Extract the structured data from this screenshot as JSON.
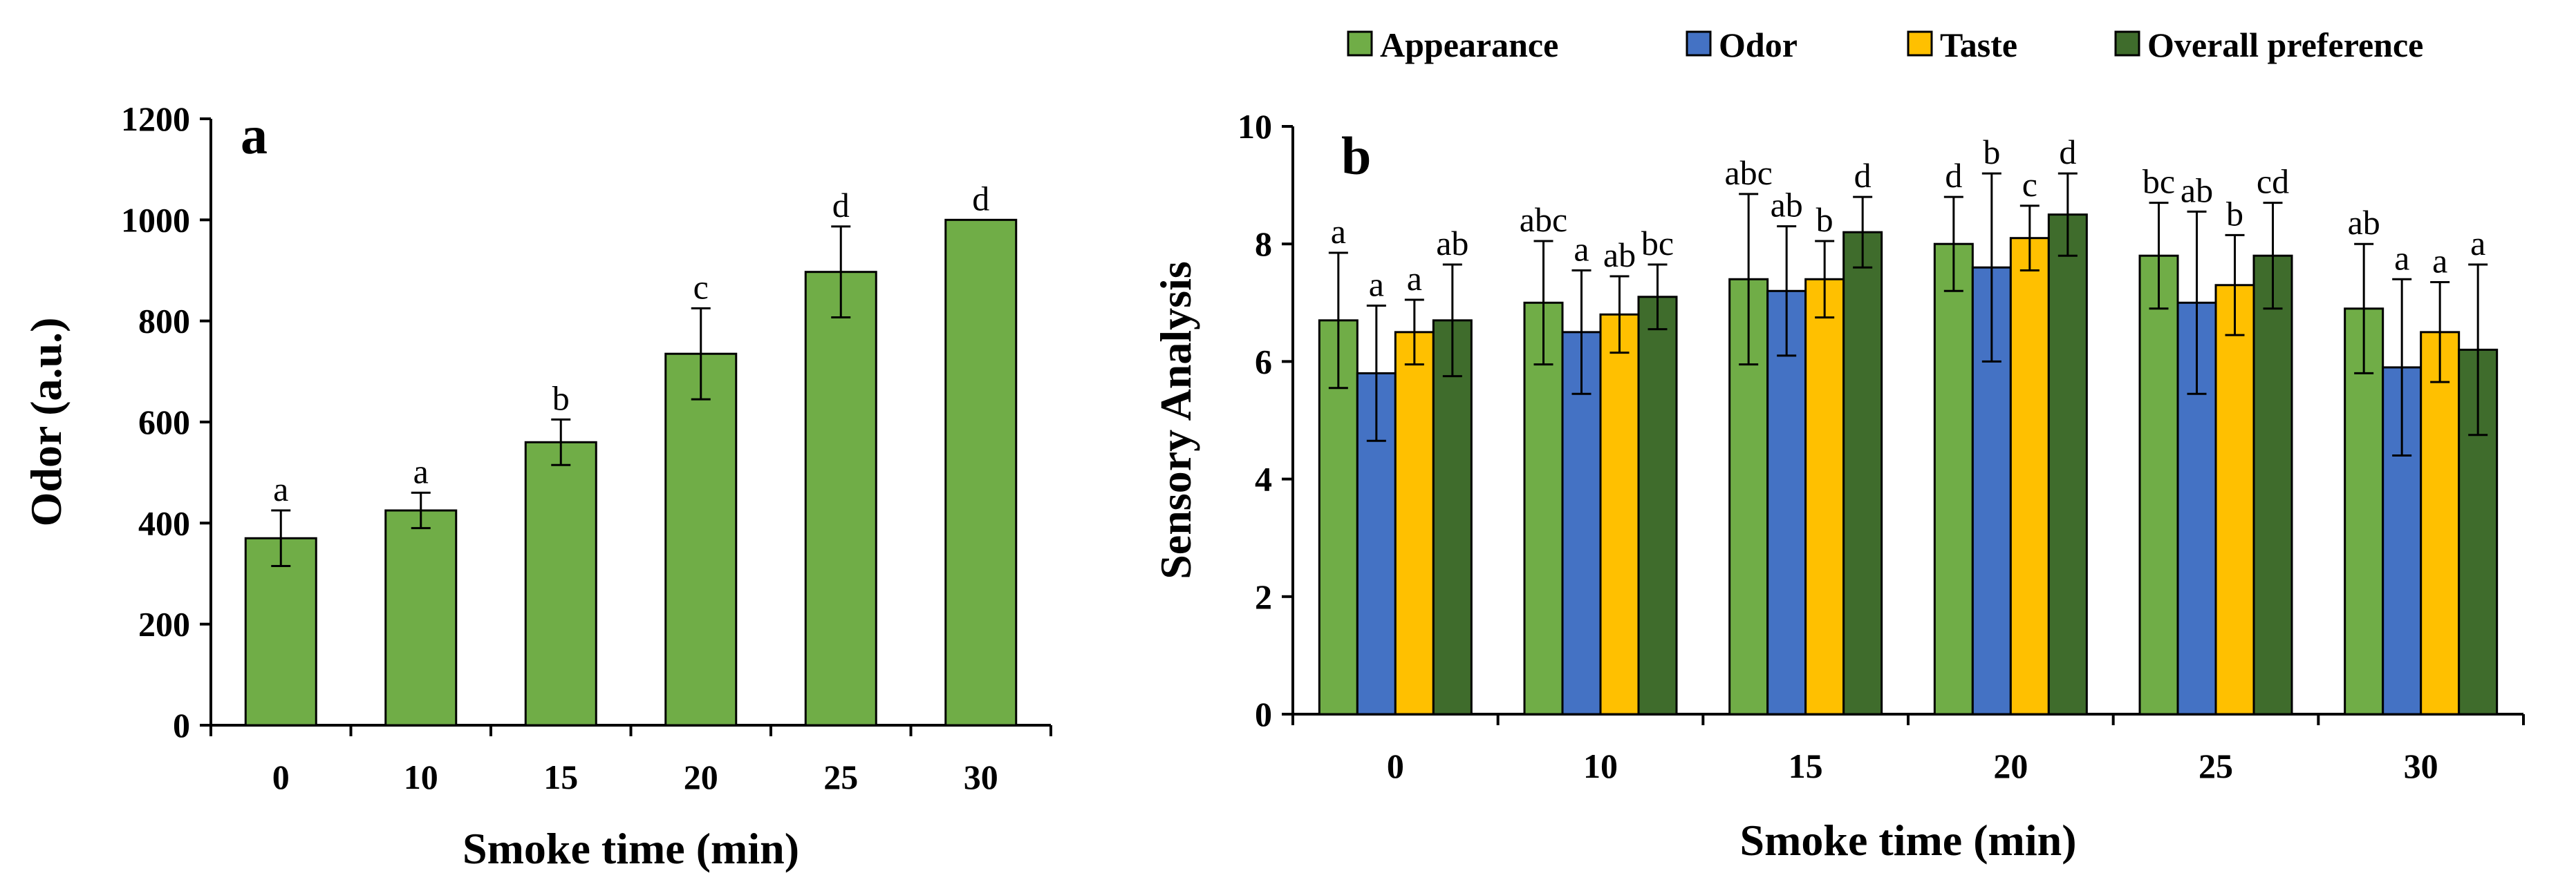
{
  "chart_data": [
    {
      "type": "bar",
      "panel_label": "a",
      "xlabel": "Smoke time (min)",
      "ylabel": "Odor (a.u.)",
      "categories": [
        "0",
        "10",
        "15",
        "20",
        "25",
        "30"
      ],
      "ylim": [
        0,
        1200
      ],
      "yticks": [
        "0",
        "200",
        "400",
        "600",
        "800",
        "1000",
        "1200"
      ],
      "grid": false,
      "series": [
        {
          "color": "#70AD47",
          "values": [
            370,
            425,
            560,
            735,
            897,
            1000
          ],
          "errors": [
            55,
            35,
            45,
            90,
            90,
            0
          ],
          "labels": [
            "a",
            "a",
            "b",
            "c",
            "d",
            "d"
          ]
        }
      ]
    },
    {
      "type": "bar",
      "panel_label": "b",
      "xlabel": "Smoke time (min)",
      "ylabel": "Sensory Analysis",
      "categories": [
        "0",
        "10",
        "15",
        "20",
        "25",
        "30"
      ],
      "ylim": [
        0,
        10
      ],
      "yticks": [
        "0",
        "2",
        "4",
        "6",
        "8",
        "10"
      ],
      "grid": false,
      "legend_position": "top",
      "series": [
        {
          "name": "Appearance",
          "color": "#70AD47",
          "values": [
            6.7,
            7.0,
            7.4,
            8.0,
            7.8,
            6.9
          ],
          "errors": [
            1.15,
            1.05,
            1.45,
            0.8,
            0.9,
            1.1
          ],
          "labels": [
            "a",
            "abc",
            "abc",
            "d",
            "bc",
            "ab"
          ]
        },
        {
          "name": "Odor",
          "color": "#4472C4",
          "values": [
            5.8,
            6.5,
            7.2,
            7.6,
            7.0,
            5.9
          ],
          "errors": [
            1.15,
            1.05,
            1.1,
            1.6,
            1.55,
            1.5
          ],
          "labels": [
            "a",
            "a",
            "ab",
            "b",
            "ab",
            "a"
          ]
        },
        {
          "name": "Taste",
          "color": "#FFC000",
          "values": [
            6.5,
            6.8,
            7.4,
            8.1,
            7.3,
            6.5
          ],
          "errors": [
            0.55,
            0.65,
            0.65,
            0.55,
            0.85,
            0.85
          ],
          "labels": [
            "a",
            "ab",
            "b",
            "c",
            "b",
            "a"
          ]
        },
        {
          "name": "Overall preference",
          "color": "#3F6C2C",
          "values": [
            6.7,
            7.1,
            8.2,
            8.5,
            7.8,
            6.2
          ],
          "errors": [
            0.95,
            0.55,
            0.6,
            0.7,
            0.9,
            1.45
          ],
          "labels": [
            "ab",
            "bc",
            "d",
            "d",
            "cd",
            "a"
          ]
        }
      ]
    }
  ]
}
